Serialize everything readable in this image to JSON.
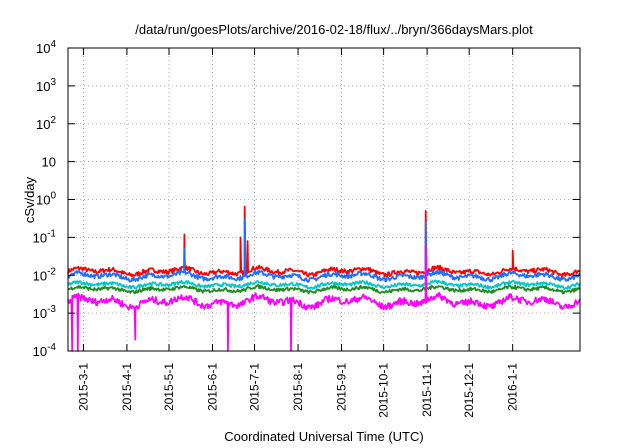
{
  "chart_data": {
    "type": "line",
    "title": "/data/run/goesPlots/archive/2016-02-18/flux/../bryn/366daysMars.plot",
    "xlabel": "Coordinated Universal Time (UTC)",
    "ylabel": "cSv/day",
    "yscale": "log",
    "ylim": [
      0.0001,
      10000
    ],
    "xlim": [
      "2015-02-18",
      "2016-02-18"
    ],
    "grid": true,
    "legend": "none",
    "y_ticks": [
      {
        "value": 0.0001,
        "base": "10",
        "exp": "-4"
      },
      {
        "value": 0.001,
        "base": "10",
        "exp": "-3"
      },
      {
        "value": 0.01,
        "base": "10",
        "exp": "-2"
      },
      {
        "value": 0.1,
        "base": "10",
        "exp": "-1"
      },
      {
        "value": 1,
        "base": "10",
        "exp": "0"
      },
      {
        "value": 10,
        "base": "10",
        "exp": ""
      },
      {
        "value": 100,
        "base": "10",
        "exp": "2"
      },
      {
        "value": 1000,
        "base": "10",
        "exp": "3"
      },
      {
        "value": 10000,
        "base": "10",
        "exp": "4"
      }
    ],
    "x_ticks": [
      {
        "date": "2015-03-01",
        "label": "2015-3-1"
      },
      {
        "date": "2015-04-01",
        "label": "2015-4-1"
      },
      {
        "date": "2015-05-01",
        "label": "2015-5-1"
      },
      {
        "date": "2015-06-01",
        "label": "2015-6-1"
      },
      {
        "date": "2015-07-01",
        "label": "2015-7-1"
      },
      {
        "date": "2015-08-01",
        "label": "2015-8-1"
      },
      {
        "date": "2015-09-01",
        "label": "2015-9-1"
      },
      {
        "date": "2015-10-01",
        "label": "2015-10-1"
      },
      {
        "date": "2015-11-01",
        "label": "2015-11-1"
      },
      {
        "date": "2015-12-01",
        "label": "2015-12-1"
      },
      {
        "date": "2016-01-01",
        "label": "2016-1-1"
      }
    ],
    "series": [
      {
        "color": "#ff0000",
        "typical_range": [
          0.008,
          0.02
        ],
        "peaks": [
          {
            "date": "2015-05-12",
            "y": 0.12
          },
          {
            "date": "2015-06-21",
            "y": 0.1
          },
          {
            "date": "2015-06-24",
            "y": 0.65
          },
          {
            "date": "2015-06-26",
            "y": 0.08
          },
          {
            "date": "2015-10-31",
            "y": 0.5
          },
          {
            "date": "2016-01-01",
            "y": 0.045
          }
        ]
      },
      {
        "color": "#1e6fff",
        "typical_range": [
          0.006,
          0.015
        ],
        "peaks": [
          {
            "date": "2015-05-12",
            "y": 0.05
          },
          {
            "date": "2015-06-24",
            "y": 0.3
          },
          {
            "date": "2015-10-31",
            "y": 0.25
          }
        ]
      },
      {
        "color": "#00c8c8",
        "typical_range": [
          0.004,
          0.008
        ],
        "peaks": []
      },
      {
        "color": "#228b22",
        "typical_range": [
          0.003,
          0.006
        ],
        "peaks": []
      },
      {
        "color": "#ff00ff",
        "typical_range": [
          0.001,
          0.004
        ],
        "peaks": [
          {
            "date": "2015-10-31",
            "y": 0.06
          }
        ],
        "dips": [
          {
            "date": "2015-02-21",
            "y": 0.0001
          },
          {
            "date": "2015-02-25",
            "y": 0.0001
          },
          {
            "date": "2015-04-07",
            "y": 0.0002
          },
          {
            "date": "2015-06-12",
            "y": 0.0001
          },
          {
            "date": "2015-07-27",
            "y": 0.0001
          }
        ]
      }
    ]
  }
}
